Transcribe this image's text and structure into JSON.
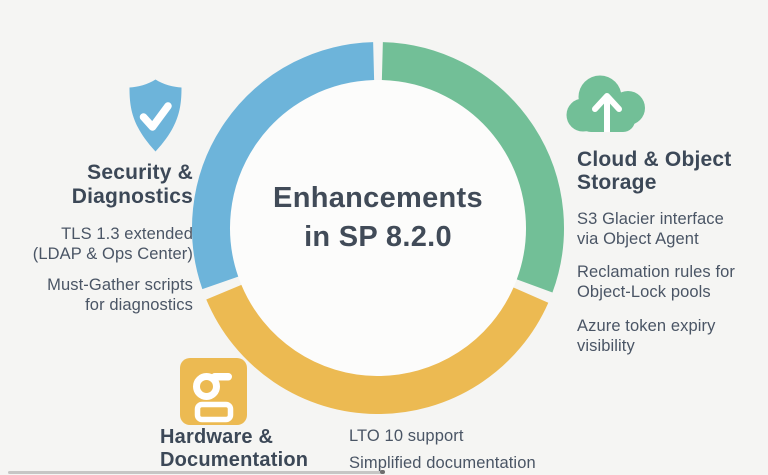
{
  "colors": {
    "page_bg": "#f5f5f3",
    "inner_circle": "#fcfcfb",
    "blue": "#6db4da",
    "green": "#72bf97",
    "yellow": "#ecba52",
    "heading_text": "#3c4857",
    "body_text": "#4a5565",
    "title_text": "#414b58",
    "icon_glyph": "#ffffff",
    "progress_bar": "#c6c6c5",
    "progress_tip": "#6e6e6e"
  },
  "center": {
    "title": "Enhancements\nin SP 8.2.0"
  },
  "donut": {
    "type": "donut",
    "arc_radius": 167,
    "stroke_width": 38,
    "inner_radius": 148,
    "segments": [
      {
        "label": "Cloud & Object Storage",
        "color": "green",
        "start_deg": 1.5,
        "end_deg": 110.3
      },
      {
        "label": "Hardware & Documentation",
        "color": "yellow",
        "start_deg": 113.7,
        "end_deg": 247.4
      },
      {
        "label": "Security & Diagnostics",
        "color": "blue",
        "start_deg": 250.8,
        "end_deg": 358.5
      }
    ]
  },
  "sections": {
    "security": {
      "icon": "shield-check-icon",
      "heading": "Security &\nDiagnostics",
      "items": [
        "TLS 1.3 extended\n(LDAP & Ops Center)",
        "Must-Gather scripts\nfor diagnostics"
      ]
    },
    "cloud": {
      "icon": "cloud-upload-icon",
      "heading": "Cloud & Object\nStorage",
      "items": [
        "S3 Glacier interface\nvia Object Agent",
        "Reclamation rules for\nObject-Lock pools",
        "Azure token expiry\nvisibility"
      ]
    },
    "hardware": {
      "icon": "tape-drive-icon",
      "heading": "Hardware &\nDocumentation",
      "items": [
        "LTO 10 support",
        "Simplified documentation"
      ]
    }
  }
}
